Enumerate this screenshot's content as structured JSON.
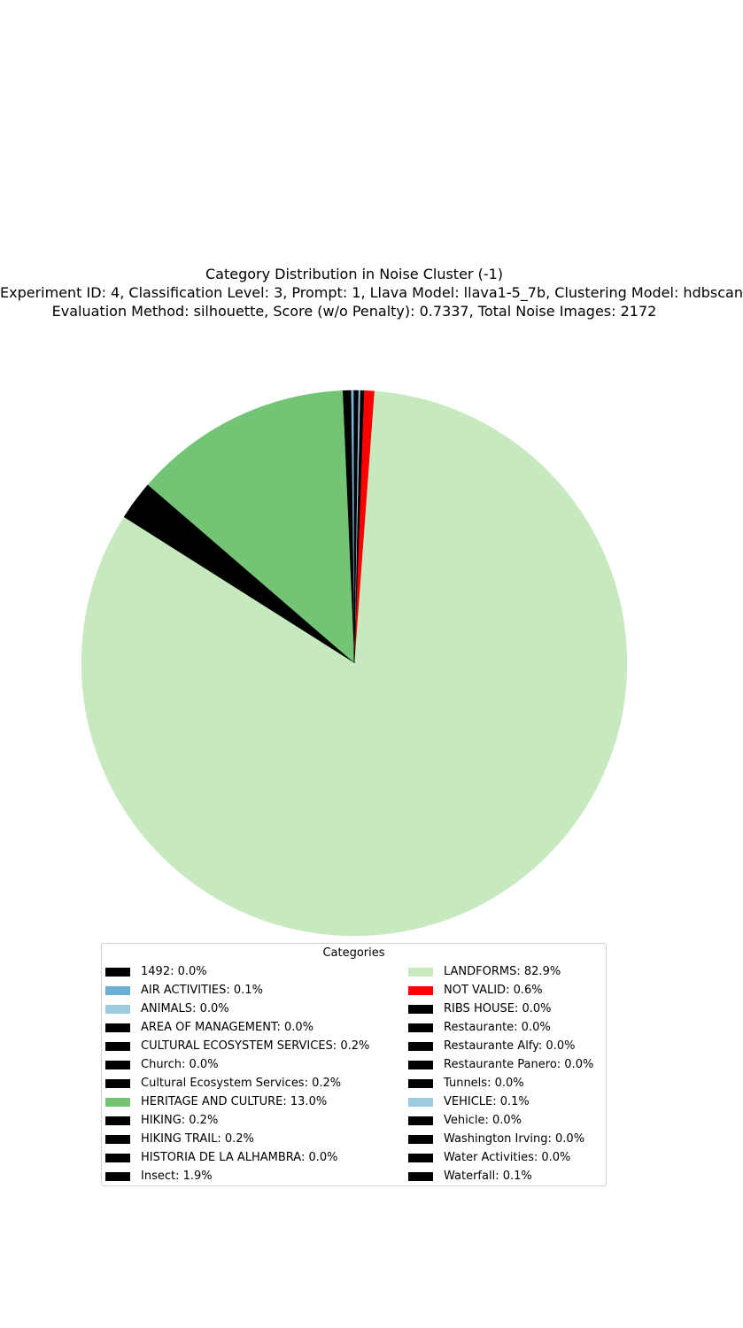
{
  "chart_data": {
    "type": "pie",
    "title": "Category Distribution in Noise Cluster (-1)",
    "subtitle_lines": [
      "Experiment ID: 4, Classification Level: 3, Prompt: 1, Llava Model: llava1-5_7b, Clustering Model: hdbscan",
      "Evaluation Method: silhouette, Score (w/o Penalty): 0.7337, Total Noise Images: 2172"
    ],
    "start_angle_deg": 90,
    "direction": "counterclockwise",
    "legend_title": "Categories",
    "legend_placement": "lower-center",
    "slices": [
      {
        "label": "1492: 0.0%",
        "name": "1492",
        "value": 0.046,
        "color": "#000000"
      },
      {
        "label": "AIR ACTIVITIES: 0.1%",
        "name": "AIR ACTIVITIES",
        "value": 0.1,
        "color": "#6baed6"
      },
      {
        "label": "ANIMALS: 0.0%",
        "name": "ANIMALS",
        "value": 0.046,
        "color": "#9ecae1"
      },
      {
        "label": "AREA OF MANAGEMENT: 0.0%",
        "name": "AREA OF MANAGEMENT",
        "value": 0.046,
        "color": "#000000"
      },
      {
        "label": "CULTURAL ECOSYSTEM SERVICES: 0.2%",
        "name": "CULTURAL ECOSYSTEM SERVICES",
        "value": 0.2,
        "color": "#000000"
      },
      {
        "label": "Church: 0.0%",
        "name": "Church",
        "value": 0.046,
        "color": "#000000"
      },
      {
        "label": "Cultural Ecosystem Services: 0.2%",
        "name": "Cultural Ecosystem Services",
        "value": 0.2,
        "color": "#000000"
      },
      {
        "label": "HERITAGE AND CULTURE: 13.0%",
        "name": "HERITAGE AND CULTURE",
        "value": 13.0,
        "color": "#74c476"
      },
      {
        "label": "HIKING: 0.2%",
        "name": "HIKING",
        "value": 0.2,
        "color": "#000000"
      },
      {
        "label": "HIKING TRAIL: 0.2%",
        "name": "HIKING TRAIL",
        "value": 0.2,
        "color": "#000000"
      },
      {
        "label": "HISTORIA DE LA ALHAMBRA: 0.0%",
        "name": "HISTORIA DE LA ALHAMBRA",
        "value": 0.046,
        "color": "#000000"
      },
      {
        "label": "Insect: 1.9%",
        "name": "Insect",
        "value": 1.9,
        "color": "#000000"
      },
      {
        "label": "LANDFORMS: 82.9%",
        "name": "LANDFORMS",
        "value": 82.9,
        "color": "#c7e9c0"
      },
      {
        "label": "NOT VALID: 0.6%",
        "name": "NOT VALID",
        "value": 0.6,
        "color": "#ff0000"
      },
      {
        "label": "RIBS HOUSE: 0.0%",
        "name": "RIBS HOUSE",
        "value": 0.046,
        "color": "#000000"
      },
      {
        "label": "Restaurante: 0.0%",
        "name": "Restaurante",
        "value": 0.046,
        "color": "#000000"
      },
      {
        "label": "Restaurante Alfy: 0.0%",
        "name": "Restaurante Alfy",
        "value": 0.046,
        "color": "#000000"
      },
      {
        "label": "Restaurante Panero: 0.0%",
        "name": "Restaurante Panero",
        "value": 0.046,
        "color": "#000000"
      },
      {
        "label": "Tunnels: 0.0%",
        "name": "Tunnels",
        "value": 0.046,
        "color": "#000000"
      },
      {
        "label": "VEHICLE: 0.1%",
        "name": "VEHICLE",
        "value": 0.1,
        "color": "#9ecae1"
      },
      {
        "label": "Vehicle: 0.0%",
        "name": "Vehicle",
        "value": 0.046,
        "color": "#000000"
      },
      {
        "label": "Washington Irving: 0.0%",
        "name": "Washington Irving",
        "value": 0.046,
        "color": "#000000"
      },
      {
        "label": "Water Activities: 0.0%",
        "name": "Water Activities",
        "value": 0.046,
        "color": "#000000"
      },
      {
        "label": "Waterfall: 0.1%",
        "name": "Waterfall",
        "value": 0.1,
        "color": "#000000"
      }
    ]
  }
}
